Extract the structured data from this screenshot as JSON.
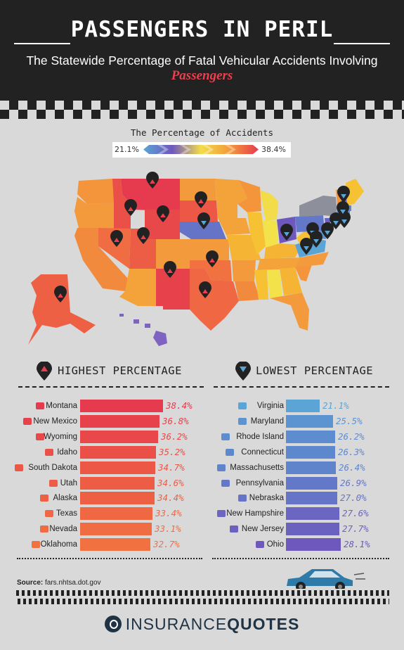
{
  "header": {
    "title": "PASSENGERS IN PERIL",
    "subtitle": "The Statewide Percentage of Fatal Vehicular Accidents Involving",
    "subtitle_accent": "Passengers"
  },
  "legend": {
    "title": "The Percentage of Accidents",
    "min_label": "21.1%",
    "max_label": "38.4%",
    "min_color": "#5aa4d6",
    "max_color": "#e63b4e"
  },
  "colors": {
    "highest_marker": "#e8404e",
    "lowest_marker": "#5aa4d6",
    "dark": "#222222",
    "background": "#d9d9d9"
  },
  "sections": {
    "highest_title": "HIGHEST PERCENTAGE",
    "highest_icon": "up-triangle-pin-icon",
    "lowest_title": "LOWEST PERCENTAGE",
    "lowest_icon": "down-triangle-pin-icon"
  },
  "chart_data": [
    {
      "type": "bar",
      "orientation": "horizontal",
      "title": "HIGHEST PERCENTAGE",
      "categories": [
        "Montana",
        "New Mexico",
        "Wyoming",
        "Idaho",
        "South Dakota",
        "Utah",
        "Alaska",
        "Texas",
        "Nevada",
        "Oklahoma"
      ],
      "values": [
        38.4,
        36.8,
        36.2,
        35.2,
        34.7,
        34.6,
        34.4,
        33.4,
        33.1,
        32.7
      ],
      "value_labels": [
        "38.4%",
        "36.8%",
        "36.2%",
        "35.2%",
        "34.7%",
        "34.6%",
        "34.4%",
        "33.4%",
        "33.1%",
        "32.7%"
      ],
      "colors": [
        "#e63b4e",
        "#e7424c",
        "#e8484a",
        "#ea5048",
        "#ec5746",
        "#ed5c45",
        "#ee6044",
        "#f06843",
        "#f06c42",
        "#f17141"
      ],
      "unit": "%"
    },
    {
      "type": "bar",
      "orientation": "horizontal",
      "title": "LOWEST PERCENTAGE",
      "categories": [
        "Virginia",
        "Maryland",
        "Rhode Island",
        "Connecticut",
        "Massachusetts",
        "Pennsylvania",
        "Nebraska",
        "New Hampshire",
        "New Jersey",
        "Ohio"
      ],
      "values": [
        21.1,
        25.5,
        26.2,
        26.3,
        26.4,
        26.9,
        27.0,
        27.6,
        27.7,
        28.1
      ],
      "value_labels": [
        "21.1%",
        "25.5%",
        "26.2%",
        "26.3%",
        "26.4%",
        "26.9%",
        "27.0%",
        "27.6%",
        "27.7%",
        "28.1%"
      ],
      "colors": [
        "#5aa4d6",
        "#5c94d2",
        "#5d8ccf",
        "#5e88ce",
        "#6084cc",
        "#6378c8",
        "#6574c6",
        "#6a66c2",
        "#6b62c0",
        "#6f58bd"
      ],
      "unit": "%"
    }
  ],
  "source": {
    "label": "Source:",
    "text": "fars.nhtsa.dot.gov"
  },
  "brand": {
    "part1": "INSURANCE",
    "part2": "QUOTES",
    "icon": "insurancequotes-logo-icon"
  }
}
